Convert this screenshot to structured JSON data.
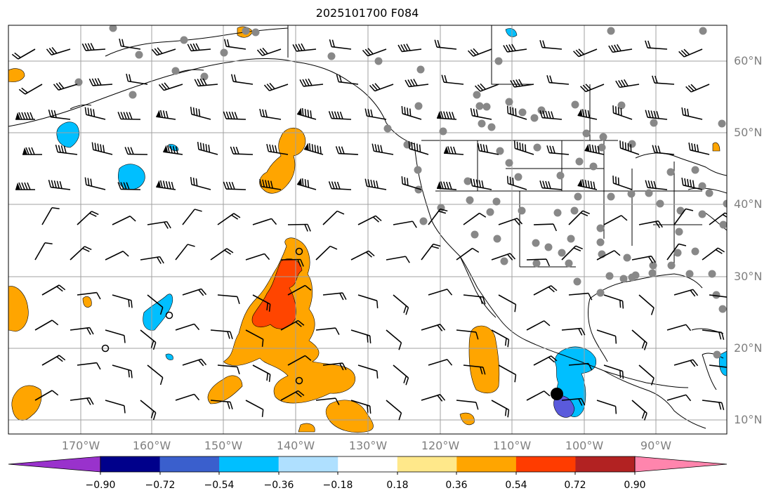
{
  "title": "2025101700 F084",
  "lat_labels": [
    "60°N",
    "50°N",
    "40°N",
    "30°N",
    "20°N",
    "10°N"
  ],
  "lon_labels": [
    "170°W",
    "160°W",
    "150°W",
    "140°W",
    "130°W",
    "120°W",
    "110°W",
    "100°W",
    "90°W"
  ],
  "colorbar": {
    "labels": [
      "−0.90",
      "−0.72",
      "−0.54",
      "−0.36",
      "−0.18",
      "0.18",
      "0.36",
      "0.54",
      "0.72",
      "0.90"
    ],
    "colors": [
      "#9932cc",
      "#00008b",
      "#3a5fcd",
      "#00bfff",
      "#afe0ff",
      "#ffffff",
      "#ffe88a",
      "#ffa500",
      "#ff3c00",
      "#b22222",
      "#ff85ad"
    ]
  },
  "colors": {
    "grid": "#a0a0a0",
    "coast": "#000000",
    "land_point": "#888888",
    "orange": "#ffa500",
    "red_orange": "#ff4500",
    "light_blue": "#00bfff",
    "purple_blue": "#5a5adc"
  }
}
